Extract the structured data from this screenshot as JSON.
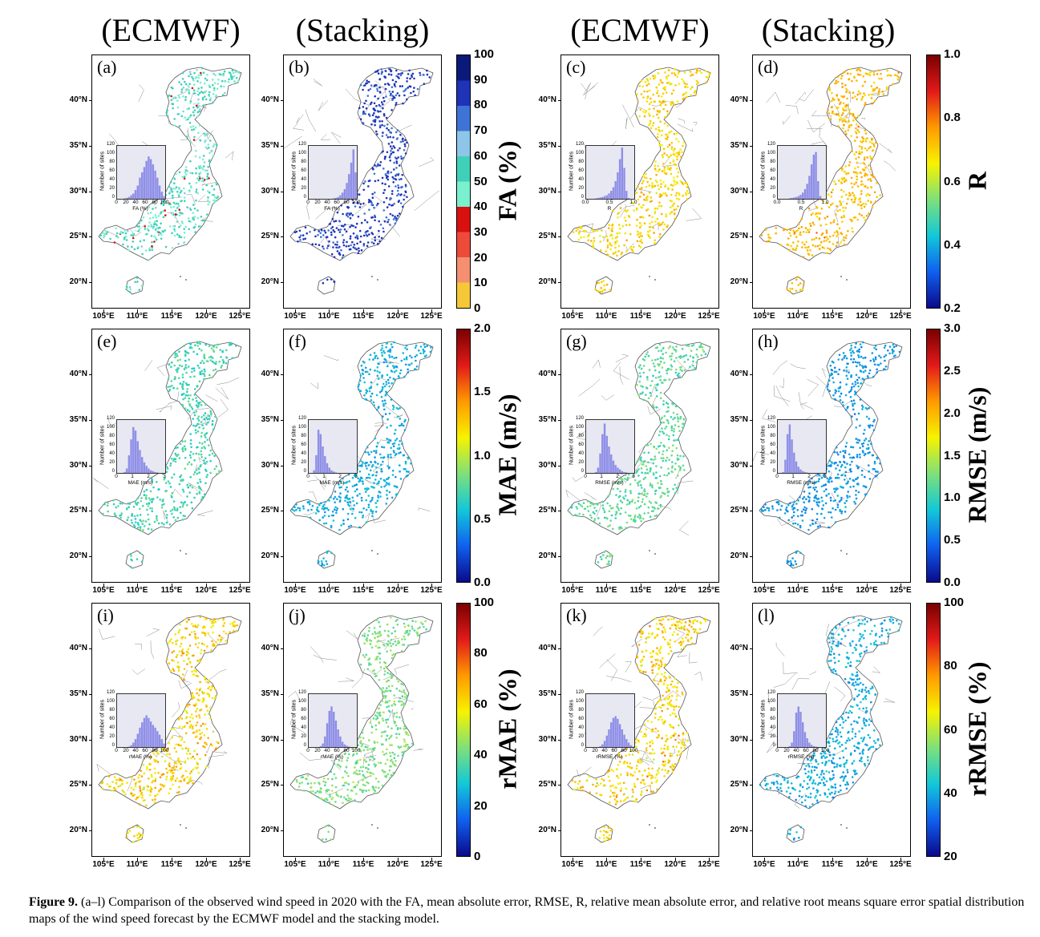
{
  "column_titles": [
    "(ECMWF)",
    "(Stacking)",
    "(ECMWF)",
    "(Stacking)"
  ],
  "lat_ticks": [
    "40°N",
    "35°N",
    "30°N",
    "25°N",
    "20°N"
  ],
  "lon_ticks": [
    "105°E",
    "110°E",
    "115°E",
    "120°E",
    "125°E"
  ],
  "inset_ylabel": "Number of sites",
  "inset_yticks": [
    "0",
    "20",
    "40",
    "60",
    "80",
    "100",
    "120"
  ],
  "inset_yticks_r0": [
    "0",
    "20",
    "40",
    "60",
    "80",
    "100",
    "120"
  ],
  "rows": [
    {
      "panels": [
        {
          "label": "(a)",
          "xlabel": "FA (%)",
          "xticks": [
            "0",
            "20",
            "40",
            "60",
            "80",
            "100"
          ],
          "cmap": "fa",
          "mean": 0.56,
          "spread": 0.22,
          "hist": [
            0,
            0,
            0,
            1,
            2,
            4,
            8,
            12,
            20,
            30,
            48,
            60,
            72,
            86,
            96,
            90,
            78,
            64,
            48,
            30,
            16,
            6
          ]
        },
        {
          "label": "(b)",
          "xlabel": "FA (%)",
          "xticks": [
            "0",
            "20",
            "40",
            "60",
            "80",
            "100"
          ],
          "cmap": "fa",
          "mean": 0.86,
          "spread": 0.06,
          "hist": [
            0,
            0,
            0,
            0,
            0,
            0,
            0,
            0,
            0,
            0,
            0,
            1,
            2,
            4,
            8,
            14,
            22,
            36,
            56,
            82,
            112,
            60
          ]
        },
        {
          "label": "(c)",
          "xlabel": "R",
          "xticks": [
            "0.0",
            "0.5",
            "1.0"
          ],
          "cmap": "r",
          "mean": 0.62,
          "spread": 0.14,
          "hist": [
            0,
            0,
            0,
            0,
            1,
            2,
            3,
            4,
            6,
            8,
            12,
            18,
            26,
            40,
            60,
            90,
            116,
            70,
            18,
            2,
            0,
            0
          ]
        },
        {
          "label": "(d)",
          "xlabel": "R",
          "xticks": [
            "0.0",
            "0.5",
            "1.0"
          ],
          "cmap": "r",
          "mean": 0.66,
          "spread": 0.12,
          "hist": [
            0,
            0,
            0,
            0,
            0,
            1,
            2,
            3,
            4,
            6,
            9,
            14,
            22,
            34,
            52,
            78,
            100,
            106,
            40,
            6,
            0,
            0
          ]
        }
      ],
      "colorbars": [
        {
          "label": "FA (%)",
          "ticks": [
            "100",
            "90",
            "80",
            "70",
            "60",
            "50",
            "40",
            "30",
            "20",
            "10",
            "0"
          ],
          "stops": [
            "#0b1a7a",
            "#1f33b8",
            "#3e74d6",
            "#8ec6ea",
            "#40d0b8",
            "#7af0cf",
            "#d81010",
            "#ee4a3a",
            "#f49070",
            "#f5c838",
            "#f5a21e"
          ],
          "discrete": true
        },
        {
          "label": "R",
          "ticks": [
            "1.0",
            "0.8",
            "0.6",
            "0.4",
            "0.2"
          ],
          "stops": [
            "#7a0000",
            "#e21a1a",
            "#ff9a00",
            "#f7f300",
            "#7fe07a",
            "#12c8d8",
            "#1060f0",
            "#0a0a8a"
          ],
          "discrete": false
        }
      ]
    },
    {
      "panels": [
        {
          "label": "(e)",
          "xlabel": "MAE (m/s)",
          "xticks": [
            "0",
            "1",
            "2",
            "3"
          ],
          "cmap": "mae",
          "mean": 0.35,
          "spread": 0.12,
          "hist": [
            0,
            0,
            0,
            2,
            10,
            40,
            76,
            104,
            96,
            72,
            52,
            36,
            24,
            16,
            10,
            6,
            4,
            2,
            1,
            0,
            0,
            0
          ]
        },
        {
          "label": "(f)",
          "xlabel": "MAE (m/s)",
          "xticks": [
            "0",
            "1",
            "2",
            "3"
          ],
          "cmap": "mae",
          "mean": 0.25,
          "spread": 0.08,
          "hist": [
            0,
            0,
            6,
            40,
            98,
            88,
            60,
            38,
            22,
            12,
            6,
            3,
            1,
            0,
            0,
            0,
            0,
            0,
            0,
            0,
            0,
            0
          ]
        },
        {
          "label": "(g)",
          "xlabel": "RMSE (m/s)",
          "xticks": [
            "0",
            "1",
            "2",
            "3"
          ],
          "cmap": "mae",
          "mean": 0.38,
          "spread": 0.12,
          "hist": [
            0,
            0,
            0,
            0,
            2,
            12,
            44,
            88,
            112,
            84,
            60,
            42,
            28,
            18,
            12,
            8,
            4,
            2,
            1,
            0,
            0,
            0
          ]
        },
        {
          "label": "(h)",
          "xlabel": "RMSE (m/s)",
          "xticks": [
            "0",
            "1",
            "2",
            "3"
          ],
          "cmap": "mae",
          "mean": 0.22,
          "spread": 0.08,
          "hist": [
            0,
            0,
            2,
            30,
            88,
            110,
            76,
            46,
            26,
            14,
            8,
            4,
            2,
            1,
            0,
            0,
            0,
            0,
            0,
            0,
            0,
            0
          ]
        }
      ],
      "colorbars": [
        {
          "label": "MAE (m/s)",
          "ticks": [
            "2.0",
            "1.5",
            "1.0",
            "0.5",
            "0.0"
          ],
          "stops": [
            "#7a0000",
            "#e21a1a",
            "#ff9a00",
            "#f7f300",
            "#7fe07a",
            "#12c8d8",
            "#1060f0",
            "#0a0a8a"
          ],
          "discrete": false
        },
        {
          "label": "RMSE (m/s)",
          "ticks": [
            "3.0",
            "2.5",
            "2.0",
            "1.5",
            "1.0",
            "0.5",
            "0.0"
          ],
          "stops": [
            "#7a0000",
            "#e21a1a",
            "#ff9a00",
            "#f7f300",
            "#7fe07a",
            "#12c8d8",
            "#1060f0",
            "#0a0a8a"
          ],
          "discrete": false
        }
      ]
    },
    {
      "panels": [
        {
          "label": "(i)",
          "xlabel": "rMAE (%)",
          "xticks": [
            "0",
            "20",
            "40",
            "60",
            "80",
            "100"
          ],
          "cmap": "rmae",
          "mean": 0.62,
          "spread": 0.2,
          "hist": [
            0,
            0,
            0,
            0,
            0,
            1,
            4,
            10,
            18,
            30,
            44,
            56,
            66,
            72,
            66,
            58,
            50,
            44,
            36,
            28,
            18,
            8
          ]
        },
        {
          "label": "(j)",
          "xlabel": "rMAE (%)",
          "xticks": [
            "0",
            "20",
            "40",
            "60",
            "80",
            "100"
          ],
          "cmap": "rmae",
          "mean": 0.42,
          "spread": 0.12,
          "hist": [
            0,
            0,
            0,
            0,
            0,
            2,
            8,
            24,
            54,
            82,
            92,
            80,
            60,
            40,
            24,
            12,
            6,
            3,
            1,
            0,
            0,
            0
          ]
        },
        {
          "label": "(k)",
          "xlabel": "rRMSE (%)",
          "xticks": [
            "0",
            "20",
            "40",
            "60",
            "80",
            "100"
          ],
          "cmap": "rmae",
          "mean": 0.62,
          "spread": 0.2,
          "hist": [
            0,
            0,
            0,
            0,
            0,
            0,
            2,
            6,
            14,
            26,
            40,
            56,
            66,
            70,
            64,
            52,
            40,
            28,
            18,
            10,
            4,
            1
          ]
        },
        {
          "label": "(l)",
          "xlabel": "rRMSE (%)",
          "xticks": [
            "0",
            "20",
            "40",
            "60",
            "80",
            "100"
          ],
          "cmap": "rmae",
          "mean": 0.25,
          "spread": 0.1,
          "hist": [
            0,
            0,
            0,
            0,
            0,
            2,
            10,
            36,
            78,
            92,
            80,
            56,
            34,
            20,
            10,
            5,
            2,
            1,
            0,
            0,
            0,
            0
          ]
        }
      ],
      "colorbars": [
        {
          "label": "rMAE (%)",
          "ticks": [
            "100",
            "80",
            "60",
            "40",
            "20",
            "0"
          ],
          "stops": [
            "#7a0000",
            "#e21a1a",
            "#ff9a00",
            "#f7f300",
            "#7fe07a",
            "#12c8d8",
            "#1060f0",
            "#0a0a8a"
          ],
          "discrete": false
        },
        {
          "label": "rRMSE (%)",
          "ticks": [
            "100",
            "80",
            "60",
            "40",
            "20"
          ],
          "stops": [
            "#7a0000",
            "#e21a1a",
            "#ff9a00",
            "#f7f300",
            "#7fe07a",
            "#12c8d8",
            "#1060f0",
            "#0a0a8a"
          ],
          "discrete": false
        }
      ]
    }
  ],
  "caption": {
    "label": "Figure 9.",
    "text": " (a–l) Comparison of the observed wind speed in 2020 with the FA, mean absolute error, RMSE, R, relative mean absolute error, and relative root means square error spatial distribution maps of the wind speed forecast by the ECMWF model and the stacking model."
  }
}
